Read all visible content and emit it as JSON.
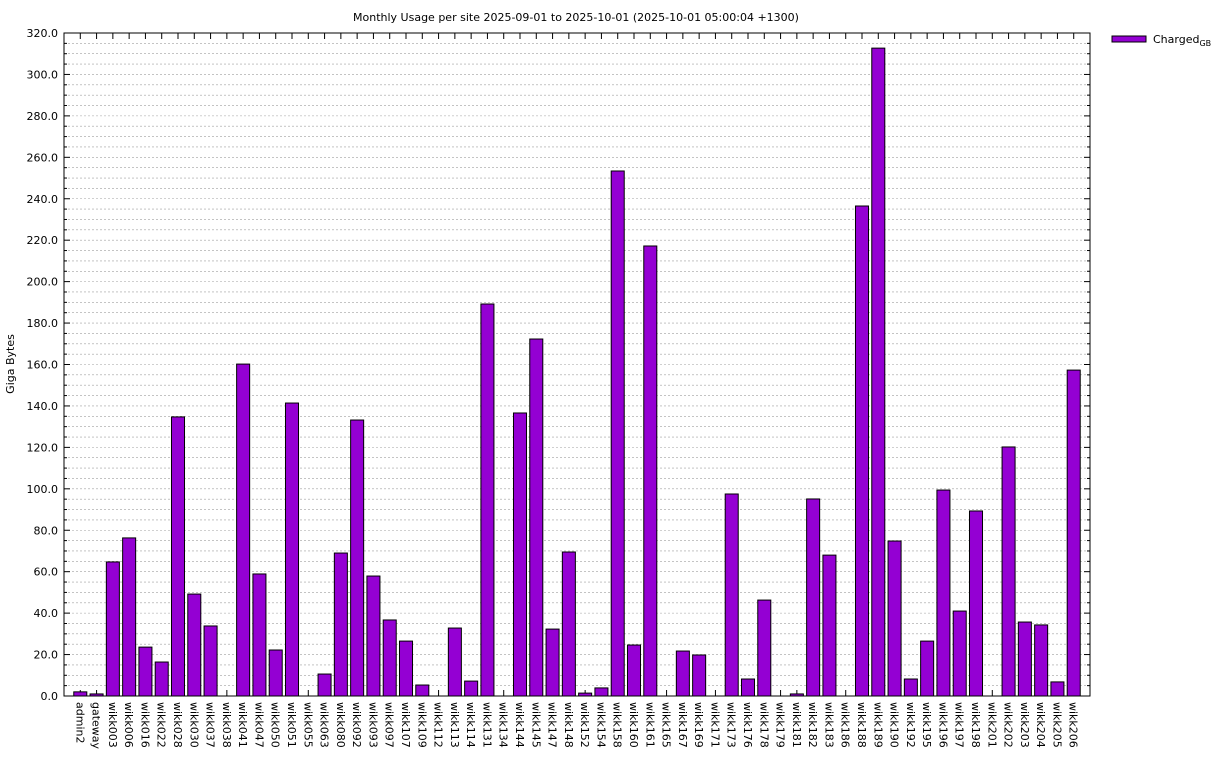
{
  "chart_data": {
    "type": "bar",
    "title": "Monthly Usage per site 2025-09-01 to 2025-10-01 (2025-10-01 05:00:04 +1300)",
    "y_label": "Giga Bytes",
    "categories": [
      "admin2",
      "gateway",
      "wikk003",
      "wikk006",
      "wikk016",
      "wikk022",
      "wikk028",
      "wikk030",
      "wikk037",
      "wikk038",
      "wikk041",
      "wikk047",
      "wikk050",
      "wikk051",
      "wikk055",
      "wikk063",
      "wikk080",
      "wikk092",
      "wikk093",
      "wikk097",
      "wikk107",
      "wikk109",
      "wikk112",
      "wikk113",
      "wikk114",
      "wikk131",
      "wikk134",
      "wikk144",
      "wikk145",
      "wikk147",
      "wikk148",
      "wikk152",
      "wikk154",
      "wikk158",
      "wikk160",
      "wikk161",
      "wikk165",
      "wikk167",
      "wikk169",
      "wikk171",
      "wikk173",
      "wikk176",
      "wikk178",
      "wikk179",
      "wikk181",
      "wikk182",
      "wikk183",
      "wikk186",
      "wikk188",
      "wikk189",
      "wikk190",
      "wikk192",
      "wikk195",
      "wikk196",
      "wikk197",
      "wikk198",
      "wikk201",
      "wikk202",
      "wikk203",
      "wikk204",
      "wikk205",
      "wikk206"
    ],
    "series": [
      {
        "name": "Charged",
        "name_sub": "GB",
        "color": "#9400d3",
        "values": [
          2,
          1,
          64.7,
          76.3,
          23.6,
          16.4,
          134.7,
          49.2,
          33.8,
          0,
          160.2,
          58.9,
          22.2,
          141.4,
          0,
          10.6,
          69,
          133.2,
          57.9,
          36.7,
          26.5,
          5.3,
          0,
          32.8,
          7.2,
          189.2,
          0,
          136.6,
          172.3,
          32.3,
          69.5,
          1.4,
          3.9,
          253.4,
          24.6,
          217.2,
          0,
          21.7,
          19.8,
          0,
          97.5,
          8.2,
          46.3,
          0,
          1,
          95.1,
          68,
          0,
          236.5,
          312.7,
          74.8,
          8.2,
          26.5,
          99.4,
          41,
          89.3,
          0,
          120.2,
          35.7,
          34.3,
          6.8,
          157.3
        ]
      }
    ],
    "ylim": [
      0,
      320
    ],
    "yticks": [
      {
        "value": 0,
        "label": "0.0"
      },
      {
        "value": 20,
        "label": "20.0"
      },
      {
        "value": 40,
        "label": "40.0"
      },
      {
        "value": 60,
        "label": "60.0"
      },
      {
        "value": 80,
        "label": "80.0"
      },
      {
        "value": 100,
        "label": "100.0"
      },
      {
        "value": 120,
        "label": "120.0"
      },
      {
        "value": 140,
        "label": "140.0"
      },
      {
        "value": 160,
        "label": "160.0"
      },
      {
        "value": 180,
        "label": "180.0"
      },
      {
        "value": 200,
        "label": "200.0"
      },
      {
        "value": 220,
        "label": "220.0"
      },
      {
        "value": 240,
        "label": "240.0"
      },
      {
        "value": 260,
        "label": "260.0"
      },
      {
        "value": 280,
        "label": "280.0"
      },
      {
        "value": 300,
        "label": "300.0"
      },
      {
        "value": 320,
        "label": "320.0"
      }
    ],
    "grid": true,
    "legend": "top-right"
  }
}
